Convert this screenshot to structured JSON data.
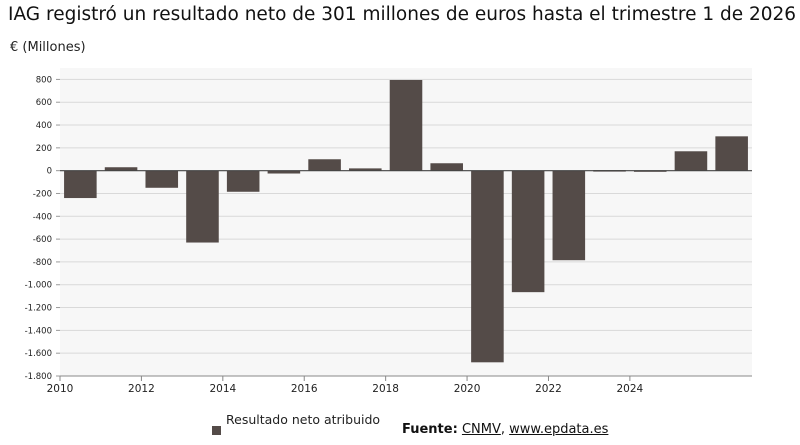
{
  "title": "IAG registró un resultado neto de 301 millones de euros hasta el trimestre 1 de 2026",
  "unit_label": "€ (Millones)",
  "legend": {
    "label": "Resultado neto atribuido",
    "color": "#544b48"
  },
  "source": {
    "prefix": "Fuente:",
    "link1": "CNMV",
    "separator": ", ",
    "link2": "www.epdata.es"
  },
  "chart_data": {
    "type": "bar",
    "categories": [
      "2010",
      "2011",
      "2012",
      "2013",
      "2014",
      "2015",
      "2016",
      "2017",
      "2018",
      "2019",
      "2020",
      "2021",
      "2022",
      "2023",
      "2024",
      "2025",
      "2026"
    ],
    "series": [
      {
        "name": "Resultado neto atribuido",
        "values": [
          -240,
          30,
          -150,
          -630,
          -185,
          -25,
          100,
          20,
          795,
          65,
          -1680,
          -1065,
          -785,
          5,
          3,
          170,
          301
        ]
      }
    ],
    "xticks": [
      "2010",
      "2012",
      "2014",
      "2016",
      "2018",
      "2020",
      "2022",
      "2024"
    ],
    "yticks": [
      800,
      600,
      400,
      200,
      0,
      -200,
      -400,
      -600,
      -800,
      -1000,
      -1200,
      -1400,
      -1600,
      -1800
    ],
    "ytick_labels": [
      "800",
      "600",
      "400",
      "200",
      "0",
      "-200",
      "-400",
      "-600",
      "-800",
      "-1.000",
      "-1.200",
      "-1.400",
      "-1.600",
      "-1.800"
    ],
    "ylim": [
      -1800,
      900
    ],
    "grid": true,
    "legend_position": "bottom-left",
    "bar_color": "#544b48",
    "plot_background": "#f7f7f7",
    "grid_color": "#d9d9d9"
  }
}
